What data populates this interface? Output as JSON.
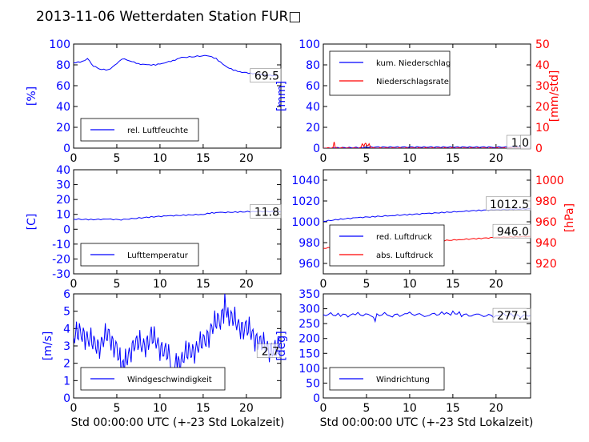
{
  "title": "2013-11-06 Wetterdaten Station FUR□",
  "xlabel": "Std 00:00:00 UTC (+-23 Std Lokalzeit)",
  "colors": {
    "blue": "#0000ff",
    "red": "#ff0000"
  },
  "chart_data": [
    {
      "type": "line",
      "ylabel": "[%]",
      "xlim": [
        0,
        24
      ],
      "ylim": [
        0,
        100
      ],
      "xticks": [
        0,
        5,
        10,
        15,
        20
      ],
      "yticks": [
        0,
        20,
        40,
        60,
        80,
        100
      ],
      "legend": "lower-left",
      "series": [
        {
          "name": "rel. Luftfeuchte",
          "color": "#0000ff",
          "x": [
            0,
            1,
            1.6,
            2.3,
            3,
            4,
            5,
            5.6,
            6.5,
            7.5,
            8.5,
            9.5,
            10.5,
            11.5,
            12.5,
            14,
            15.5,
            16.5,
            17.5,
            18.5,
            19.5,
            20.5,
            21.5,
            22.5,
            23.5
          ],
          "y": [
            82,
            83,
            86,
            79,
            76,
            75,
            81,
            86,
            84,
            81,
            80,
            80,
            82,
            84,
            87,
            88,
            89,
            86,
            79,
            75,
            73,
            72,
            71,
            70,
            69.5
          ]
        }
      ],
      "last_value": "69.5"
    },
    {
      "type": "line",
      "ylabel": "[mm]",
      "y2label": "[mm/std]",
      "xlim": [
        0,
        24
      ],
      "ylim": [
        0,
        100
      ],
      "y2lim": [
        0,
        50
      ],
      "xticks": [
        0,
        5,
        10,
        15,
        20
      ],
      "yticks": [
        0,
        20,
        40,
        60,
        80,
        100
      ],
      "y2ticks": [
        0,
        10,
        20,
        30,
        40,
        50
      ],
      "legend": "top-left",
      "series": [
        {
          "name": "kum. Niederschlag",
          "color": "#0000ff",
          "axis": "left",
          "x": [
            0,
            1.2,
            1.4,
            4.6,
            5,
            5.5,
            10,
            20,
            24
          ],
          "y": [
            0,
            0,
            0.4,
            0.6,
            0.9,
            1.0,
            1.0,
            1.0,
            1.0
          ]
        },
        {
          "name": "Niederschlagsrate",
          "color": "#ff0000",
          "axis": "right",
          "x": [
            0,
            1.1,
            1.25,
            1.4,
            1.6,
            4.3,
            4.5,
            4.7,
            4.9,
            5.1,
            5.3,
            5.5,
            24
          ],
          "y": [
            0,
            0,
            3,
            0,
            0,
            0,
            2,
            1,
            2.5,
            1,
            2,
            0,
            0
          ]
        }
      ],
      "last_value": "1.0",
      "last_value2": "0"
    },
    {
      "type": "line",
      "ylabel": "[C]",
      "xlim": [
        0,
        24
      ],
      "ylim": [
        -30,
        40
      ],
      "xticks": [
        0,
        5,
        10,
        15,
        20
      ],
      "yticks": [
        -30,
        -20,
        -10,
        0,
        10,
        20,
        30,
        40
      ],
      "legend": "lower-left",
      "series": [
        {
          "name": "Lufttemperatur",
          "color": "#0000ff",
          "x": [
            0,
            2,
            4,
            5.5,
            7,
            9,
            11,
            13,
            15,
            16,
            17,
            19,
            21,
            23,
            24
          ],
          "y": [
            6.8,
            6.5,
            6.8,
            6.4,
            7.2,
            8.3,
            9.0,
            9.5,
            10.0,
            11.0,
            11.3,
            11.5,
            12.0,
            11.9,
            11.8
          ]
        }
      ],
      "last_value": "11.8"
    },
    {
      "type": "line",
      "ylabel": "[hPa]",
      "xlim": [
        0,
        24
      ],
      "ylim": [
        950,
        1050
      ],
      "y2lim": [
        910,
        1010
      ],
      "xticks": [
        0,
        5,
        10,
        15,
        20
      ],
      "yticks": [
        960,
        980,
        1000,
        1020,
        1040
      ],
      "y2ticks": [
        920,
        940,
        960,
        980,
        1000
      ],
      "legend": "lower-left",
      "series": [
        {
          "name": "red. Luftdruck",
          "color": "#0000ff",
          "axis": "left",
          "x": [
            0,
            2,
            4,
            6,
            8,
            10,
            12,
            14,
            16,
            18,
            20,
            22,
            24
          ],
          "y": [
            1000.5,
            1002.5,
            1004,
            1005,
            1006,
            1007,
            1008,
            1009,
            1010,
            1011,
            1011.5,
            1012,
            1012.5
          ]
        },
        {
          "name": "abs. Luftdruck",
          "color": "#ff0000",
          "axis": "right",
          "x": [
            0,
            2,
            4,
            6,
            8,
            10,
            12,
            14,
            16,
            18,
            20,
            22,
            24
          ],
          "y": [
            934.5,
            936,
            937.5,
            938.5,
            939.5,
            940,
            941,
            942,
            943,
            944,
            945,
            945.5,
            946.0
          ]
        }
      ],
      "last_value": "1012.5",
      "last_value2": "946.0"
    },
    {
      "type": "line",
      "ylabel": "[m/s]",
      "xlim": [
        0,
        24
      ],
      "ylim": [
        0,
        6
      ],
      "xticks": [
        0,
        5,
        10,
        15,
        20
      ],
      "yticks": [
        0,
        1,
        2,
        3,
        4,
        5,
        6
      ],
      "legend": "lower-left",
      "series": [
        {
          "name": "Windgeschwindigkeit",
          "color": "#0000ff",
          "x": [
            0,
            1,
            2,
            3,
            4,
            5,
            5.5,
            6,
            7,
            8,
            9,
            10,
            11,
            11.5,
            12,
            13,
            14,
            15,
            16,
            17,
            17.5,
            18,
            19,
            20,
            21,
            22,
            23,
            24
          ],
          "y": [
            3.5,
            3.8,
            3.2,
            3.0,
            3.7,
            2.8,
            1.8,
            2.0,
            3.2,
            3.0,
            3.5,
            3.0,
            2.4,
            1.5,
            2.0,
            2.5,
            2.8,
            3.2,
            4.0,
            4.6,
            5.2,
            4.8,
            4.2,
            4.0,
            3.5,
            3.0,
            2.8,
            2.7
          ]
        }
      ],
      "last_value": "2.7"
    },
    {
      "type": "line",
      "ylabel": "[deg]",
      "xlim": [
        0,
        24
      ],
      "ylim": [
        0,
        350
      ],
      "xticks": [
        0,
        5,
        10,
        15,
        20
      ],
      "yticks": [
        0,
        50,
        100,
        150,
        200,
        250,
        300,
        350
      ],
      "legend": "lower-left",
      "series": [
        {
          "name": "Windrichtung",
          "color": "#0000ff",
          "x": [
            0,
            2,
            4,
            5.8,
            6,
            6.2,
            8,
            10,
            12,
            14,
            15,
            16,
            18,
            20,
            22,
            24
          ],
          "y": [
            280,
            279,
            280,
            278,
            255,
            280,
            279,
            281,
            280,
            282,
            287,
            281,
            276,
            279,
            278,
            277
          ]
        }
      ],
      "last_value": "277.1"
    }
  ]
}
